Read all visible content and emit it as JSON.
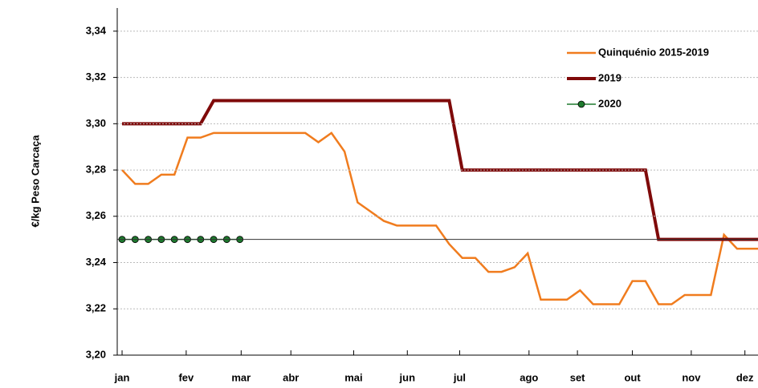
{
  "chart_data": {
    "type": "line",
    "y_label": "€/kg Peso Carcaça",
    "x": [
      1,
      2,
      3,
      4,
      5,
      6,
      7,
      8,
      9,
      10,
      11,
      12,
      13,
      14,
      15,
      16,
      17,
      18,
      19,
      20,
      21,
      22,
      23,
      24,
      25,
      26,
      27,
      28,
      29,
      30,
      31,
      32,
      33,
      34,
      35,
      36,
      37,
      38,
      39,
      40,
      41,
      42,
      43,
      44,
      45,
      46,
      47,
      48,
      49,
      50
    ],
    "xlim": [
      0.63,
      49.6
    ],
    "xticks": [
      {
        "value": 1,
        "label": "jan"
      },
      {
        "value": 5.9,
        "label": "fev"
      },
      {
        "value": 10.1,
        "label": "mar"
      },
      {
        "value": 13.9,
        "label": "abr"
      },
      {
        "value": 18.7,
        "label": "mai"
      },
      {
        "value": 22.8,
        "label": "jun"
      },
      {
        "value": 26.8,
        "label": "jul"
      },
      {
        "value": 32.1,
        "label": "ago"
      },
      {
        "value": 35.8,
        "label": "set"
      },
      {
        "value": 40,
        "label": "out"
      },
      {
        "value": 44.5,
        "label": "nov"
      },
      {
        "value": 48.6,
        "label": "dez"
      }
    ],
    "ylim": [
      3.2,
      3.35
    ],
    "yticks": [
      {
        "value": 3.2,
        "label": "3,20"
      },
      {
        "value": 3.22,
        "label": "3,22"
      },
      {
        "value": 3.24,
        "label": "3,24"
      },
      {
        "value": 3.26,
        "label": "3,26"
      },
      {
        "value": 3.28,
        "label": "3,28"
      },
      {
        "value": 3.3,
        "label": "3,30"
      },
      {
        "value": 3.32,
        "label": "3,32"
      },
      {
        "value": 3.34,
        "label": "3,34"
      }
    ],
    "grid": true,
    "reference_line": 3.25,
    "series": [
      {
        "name": "Quinquénio 2015-2019",
        "color": "#f07c1e",
        "width": 2.5,
        "marker": false,
        "values": [
          3.28,
          3.274,
          3.274,
          3.278,
          3.278,
          3.294,
          3.294,
          3.296,
          3.296,
          3.296,
          3.296,
          3.296,
          3.296,
          3.296,
          3.296,
          3.292,
          3.296,
          3.288,
          3.266,
          3.262,
          3.258,
          3.256,
          3.256,
          3.256,
          3.256,
          3.248,
          3.242,
          3.242,
          3.236,
          3.236,
          3.238,
          3.244,
          3.224,
          3.224,
          3.224,
          3.228,
          3.222,
          3.222,
          3.222,
          3.232,
          3.232,
          3.222,
          3.222,
          3.226,
          3.226,
          3.226,
          3.252,
          3.246,
          3.246,
          3.246
        ]
      },
      {
        "name": "2019",
        "color": "#7f0a0a",
        "width": 4,
        "marker": false,
        "values": [
          3.3,
          3.3,
          3.3,
          3.3,
          3.3,
          3.3,
          3.3,
          3.31,
          3.31,
          3.31,
          3.31,
          3.31,
          3.31,
          3.31,
          3.31,
          3.31,
          3.31,
          3.31,
          3.31,
          3.31,
          3.31,
          3.31,
          3.31,
          3.31,
          3.31,
          3.31,
          3.28,
          3.28,
          3.28,
          3.28,
          3.28,
          3.28,
          3.28,
          3.28,
          3.28,
          3.28,
          3.28,
          3.28,
          3.28,
          3.28,
          3.28,
          3.25,
          3.25,
          3.25,
          3.25,
          3.25,
          3.25,
          3.25,
          3.25,
          3.25
        ]
      },
      {
        "name": "2020",
        "color": "#1e7a2e",
        "width": 1.5,
        "marker": true,
        "values": [
          3.25,
          3.25,
          3.25,
          3.25,
          3.25,
          3.25,
          3.25,
          3.25,
          3.25,
          3.25,
          null,
          null,
          null,
          null,
          null,
          null,
          null,
          null,
          null,
          null,
          null,
          null,
          null,
          null,
          null,
          null,
          null,
          null,
          null,
          null,
          null,
          null,
          null,
          null,
          null,
          null,
          null,
          null,
          null,
          null,
          null,
          null,
          null,
          null,
          null,
          null,
          null,
          null,
          null,
          null
        ]
      }
    ]
  }
}
